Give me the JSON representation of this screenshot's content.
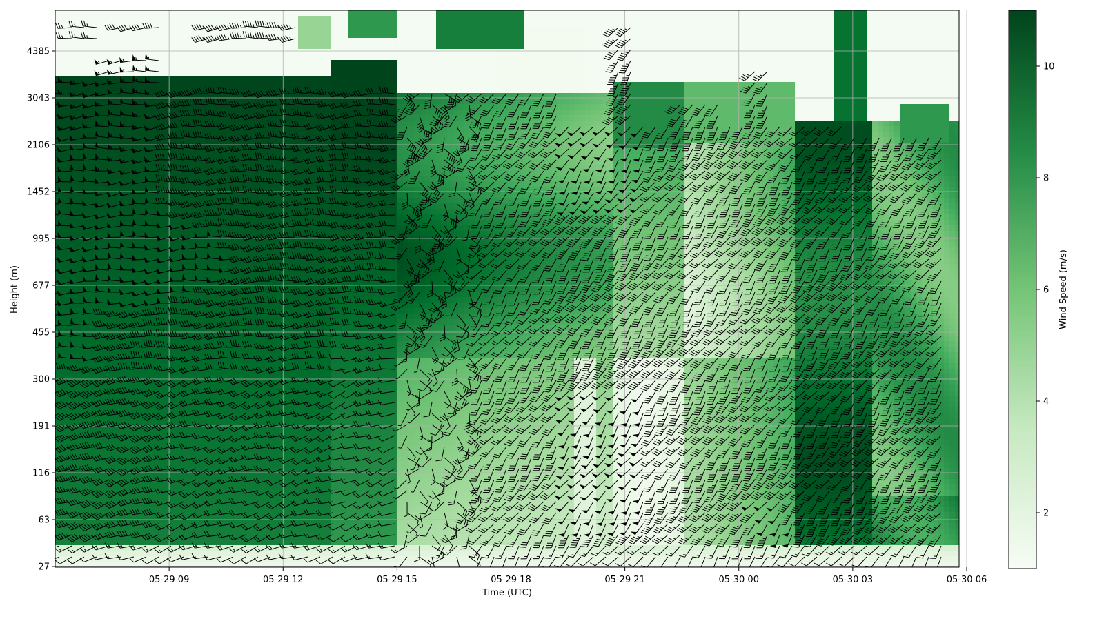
{
  "chart_data": {
    "type": "heatmap",
    "title": "",
    "xlabel": "Time (UTC)",
    "ylabel": "Height (m)",
    "x_tick_labels": [
      "05-29 09",
      "05-29 12",
      "05-29 15",
      "05-29 18",
      "05-29 21",
      "05-30 00",
      "05-30 03",
      "05-30 06"
    ],
    "x_tick_hours": [
      3,
      6,
      9,
      12,
      15,
      18,
      21,
      24
    ],
    "x_range_hours_from_0600": [
      0.0,
      23.8
    ],
    "y_tick_labels": [
      "27",
      "63",
      "116",
      "191",
      "300",
      "455",
      "677",
      "995",
      "1452",
      "2106",
      "3043",
      "4385"
    ],
    "y_scale": "log-like (levels evenly spaced)",
    "grid": true,
    "overlay": "wind barbs (direction and speed)",
    "colorbar": {
      "label": "Wind Speed (m/s)",
      "ticks": [
        "2",
        "4",
        "6",
        "8",
        "10"
      ],
      "tick_values": [
        2,
        4,
        6,
        8,
        10
      ],
      "range": [
        1,
        11
      ],
      "colormap": "Greens",
      "colors": [
        "#f7fcf5",
        "#c7e9c0",
        "#74c476",
        "#238b45",
        "#00441b"
      ]
    }
  }
}
